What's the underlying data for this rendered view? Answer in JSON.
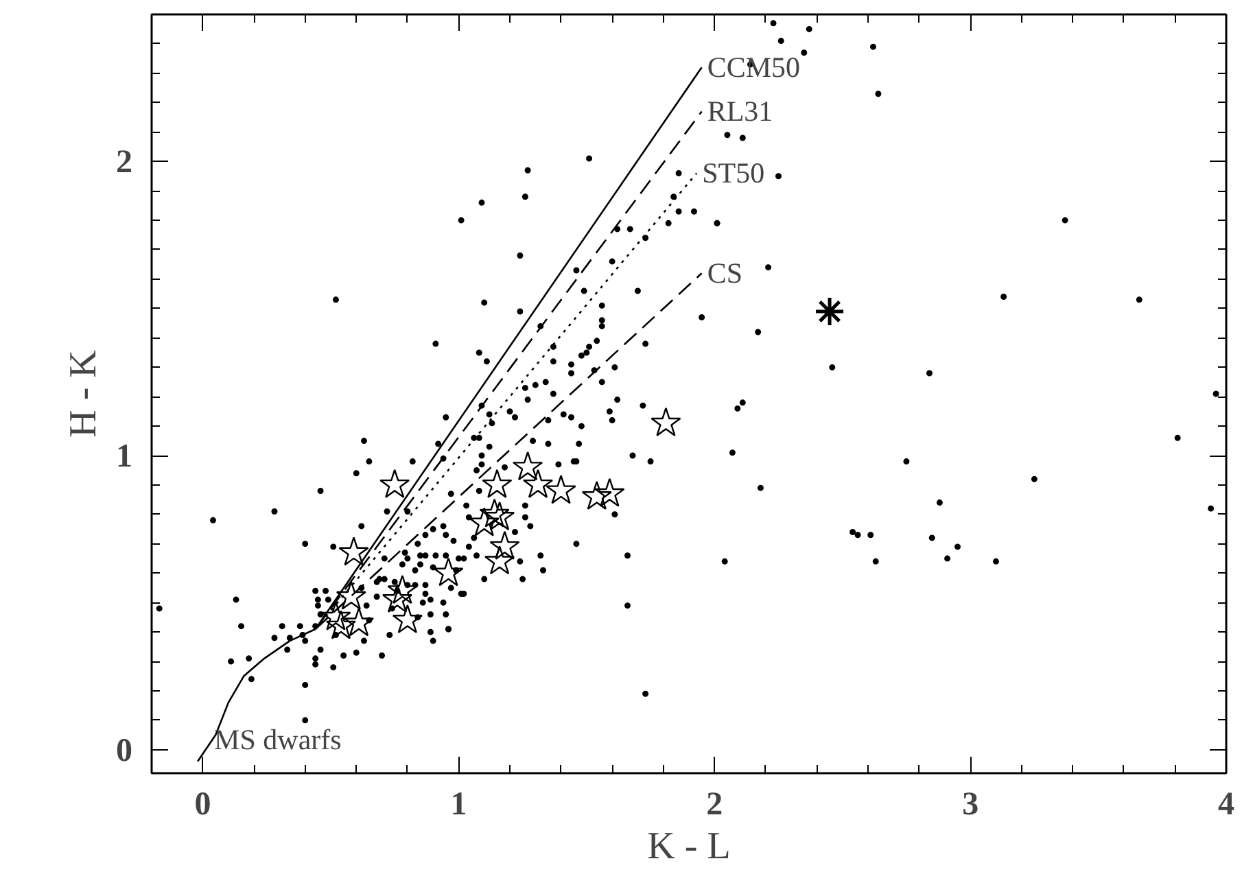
{
  "chart_data": {
    "type": "scatter",
    "xlabel": "K - L",
    "ylabel": "H - K",
    "xlim": [
      -0.2,
      4.0
    ],
    "ylim": [
      -0.08,
      2.5
    ],
    "xticks": [
      0,
      1,
      2,
      3,
      4
    ],
    "yticks": [
      0,
      1,
      2
    ],
    "grid": false,
    "series": [
      {
        "marker": "circle",
        "color": "#000000",
        "x": [
          2.23,
          2.37,
          2.26,
          2.35,
          2.14,
          2.62,
          2.64,
          2.05,
          2.11,
          2.25,
          2.01,
          2.21,
          3.37,
          3.13,
          3.66,
          2.17,
          2.46,
          2.84,
          3.96,
          2.09,
          2.11,
          2.07,
          3.81,
          2.75,
          3.25,
          2.18,
          2.88,
          3.94,
          2.54,
          2.56,
          2.61,
          2.85,
          2.95,
          2.91,
          2.63,
          3.1,
          2.04,
          1.51,
          1.27,
          1.09,
          1.26,
          1.01,
          1.86,
          1.84,
          1.86,
          1.92,
          1.82,
          2.01,
          1.62,
          1.67,
          1.73,
          1.24,
          1.6,
          1.46,
          1.7,
          1.49,
          1.56,
          1.1,
          1.24,
          1.56,
          1.95,
          1.56,
          1.32,
          1.54,
          1.73,
          1.08,
          1.51,
          1.5,
          1.37,
          1.48,
          1.11,
          1.37,
          1.44,
          1.53,
          1.61,
          1.44,
          1.34,
          1.3,
          1.26,
          1.56,
          1.37,
          1.27,
          1.62,
          1.72,
          1.09,
          1.2,
          1.59,
          1.12,
          1.22,
          1.41,
          1.44,
          1.35,
          1.6,
          1.13,
          1.48,
          1.29,
          1.35,
          1.47,
          1.12,
          1.06,
          1.68,
          1.75,
          1.46,
          1.39,
          1.09,
          1.07,
          1.18,
          0.95,
          0.63,
          0.65,
          0.6,
          0.82,
          0.92,
          0.46,
          0.28,
          0.4,
          0.51,
          0.62,
          0.72,
          0.8,
          0.94,
          1.08,
          1.09,
          1.08,
          0.97,
          1.03,
          1.04,
          0.9,
          0.94,
          0.87,
          0.95,
          0.98,
          1.06,
          1.04,
          0.84,
          0.79,
          0.71,
          0.8,
          0.85,
          0.87,
          0.91,
          0.95,
          1.0,
          1.02,
          0.78,
          0.83,
          0.85,
          0.9,
          0.99,
          1.07,
          0.69,
          0.68,
          0.71,
          0.75,
          0.8,
          0.83,
          0.87,
          0.62,
          0.44,
          0.48,
          0.45,
          0.49,
          0.68,
          0.76,
          0.87,
          0.89,
          0.97,
          1.01,
          0.45,
          0.46,
          0.64,
          0.74,
          0.86,
          0.94,
          0.95,
          0.89,
          0.84,
          0.65,
          0.38,
          0.34,
          0.31,
          0.28,
          0.39,
          0.4,
          0.44,
          0.52,
          0.63,
          0.73,
          0.89,
          0.96,
          0.9,
          0.33,
          0.18,
          0.46,
          0.6,
          0.55,
          0.44,
          0.44,
          0.51,
          0.7,
          0.19,
          0.4,
          0.4,
          -0.17,
          0.04,
          0.13,
          0.15,
          0.11,
          0.52,
          0.91,
          1.73,
          1.66,
          1.66,
          1.46,
          1.61,
          1.33,
          1.32,
          1.25,
          1.28,
          1.26,
          1.26,
          1.45,
          0.96,
          1.02,
          1.1,
          1.22,
          1.24
        ],
        "values": [
          2.47,
          2.45,
          2.41,
          2.37,
          2.33,
          2.39,
          2.23,
          2.09,
          2.08,
          1.95,
          1.79,
          1.64,
          1.8,
          1.54,
          1.53,
          1.42,
          1.3,
          1.28,
          1.21,
          1.16,
          1.18,
          1.01,
          1.06,
          0.98,
          0.92,
          0.89,
          0.84,
          0.82,
          0.74,
          0.73,
          0.73,
          0.72,
          0.69,
          0.65,
          0.64,
          0.64,
          0.64,
          2.01,
          1.97,
          1.86,
          1.88,
          1.8,
          1.96,
          1.88,
          1.83,
          1.83,
          1.79,
          1.79,
          1.77,
          1.77,
          1.74,
          1.68,
          1.66,
          1.63,
          1.56,
          1.56,
          1.51,
          1.52,
          1.49,
          1.46,
          1.47,
          1.44,
          1.44,
          1.39,
          1.38,
          1.35,
          1.37,
          1.35,
          1.37,
          1.34,
          1.32,
          1.32,
          1.31,
          1.29,
          1.3,
          1.28,
          1.25,
          1.24,
          1.23,
          1.25,
          1.21,
          1.19,
          1.19,
          1.17,
          1.17,
          1.15,
          1.15,
          1.14,
          1.13,
          1.14,
          1.13,
          1.12,
          1.12,
          1.11,
          1.1,
          1.05,
          1.04,
          1.04,
          1.03,
          1.06,
          1.0,
          0.98,
          0.98,
          0.97,
          1.0,
          0.95,
          0.96,
          1.13,
          1.05,
          0.98,
          0.94,
          0.98,
          1.04,
          0.88,
          0.81,
          0.7,
          0.69,
          0.76,
          0.81,
          0.81,
          0.99,
          1.06,
          0.97,
          0.88,
          0.87,
          0.83,
          0.79,
          0.75,
          0.76,
          0.73,
          0.73,
          0.71,
          0.72,
          0.69,
          0.7,
          0.67,
          0.65,
          0.65,
          0.66,
          0.66,
          0.66,
          0.66,
          0.65,
          0.65,
          0.63,
          0.61,
          0.63,
          0.62,
          0.61,
          0.66,
          0.58,
          0.57,
          0.58,
          0.57,
          0.56,
          0.56,
          0.56,
          0.55,
          0.54,
          0.54,
          0.51,
          0.51,
          0.52,
          0.54,
          0.53,
          0.51,
          0.55,
          0.53,
          0.49,
          0.46,
          0.49,
          0.48,
          0.5,
          0.5,
          0.46,
          0.46,
          0.45,
          0.44,
          0.42,
          0.38,
          0.42,
          0.38,
          0.39,
          0.37,
          0.42,
          0.39,
          0.37,
          0.39,
          0.4,
          0.41,
          0.37,
          0.34,
          0.31,
          0.34,
          0.33,
          0.32,
          0.31,
          0.29,
          0.28,
          0.32,
          0.24,
          0.22,
          0.1,
          0.48,
          0.78,
          0.51,
          0.42,
          0.3,
          1.53,
          1.38,
          0.19,
          0.49,
          0.66,
          0.7,
          0.8,
          0.61,
          0.66,
          0.58,
          0.76,
          0.79,
          0.83,
          0.98,
          0.41,
          0.53,
          0.58,
          0.74,
          0.64
        ]
      },
      {
        "marker": "star",
        "color": "#000000",
        "x": [
          0.75,
          0.59,
          1.81,
          1.27,
          1.15,
          1.31,
          1.4,
          1.54,
          1.59,
          1.1,
          1.16,
          1.18,
          1.16,
          0.96,
          0.78,
          0.76,
          0.8,
          0.58,
          0.52,
          0.61,
          0.54,
          1.14
        ],
        "values": [
          0.9,
          0.67,
          1.11,
          0.96,
          0.9,
          0.9,
          0.88,
          0.86,
          0.87,
          0.77,
          0.79,
          0.69,
          0.64,
          0.6,
          0.54,
          0.51,
          0.44,
          0.52,
          0.45,
          0.43,
          0.42,
          0.8
        ]
      },
      {
        "marker": "cross",
        "color": "#000000",
        "x": [
          2.45
        ],
        "values": [
          1.49
        ]
      },
      {
        "type": "line",
        "name": "MS dwarfs",
        "line_style": "solid",
        "color": "#000000",
        "x": [
          -0.02,
          0.05,
          0.1,
          0.16,
          0.24,
          0.34,
          0.44
        ],
        "values": [
          -0.04,
          0.05,
          0.16,
          0.25,
          0.31,
          0.37,
          0.41
        ]
      },
      {
        "type": "line",
        "name": "CCM50",
        "line_style": "solid",
        "color": "#000000",
        "x": [
          0.44,
          1.95
        ],
        "values": [
          0.41,
          2.32
        ]
      },
      {
        "type": "line",
        "name": "RL31",
        "line_style": "dashed",
        "color": "#000000",
        "x": [
          0.44,
          1.95
        ],
        "values": [
          0.41,
          2.17
        ]
      },
      {
        "type": "line",
        "name": "ST50",
        "line_style": "dotted",
        "color": "#000000",
        "x": [
          0.44,
          1.93
        ],
        "values": [
          0.41,
          1.96
        ]
      },
      {
        "type": "line",
        "name": "CS",
        "line_style": "dashed",
        "color": "#000000",
        "x": [
          0.44,
          1.95
        ],
        "values": [
          0.41,
          1.62
        ]
      }
    ]
  }
}
